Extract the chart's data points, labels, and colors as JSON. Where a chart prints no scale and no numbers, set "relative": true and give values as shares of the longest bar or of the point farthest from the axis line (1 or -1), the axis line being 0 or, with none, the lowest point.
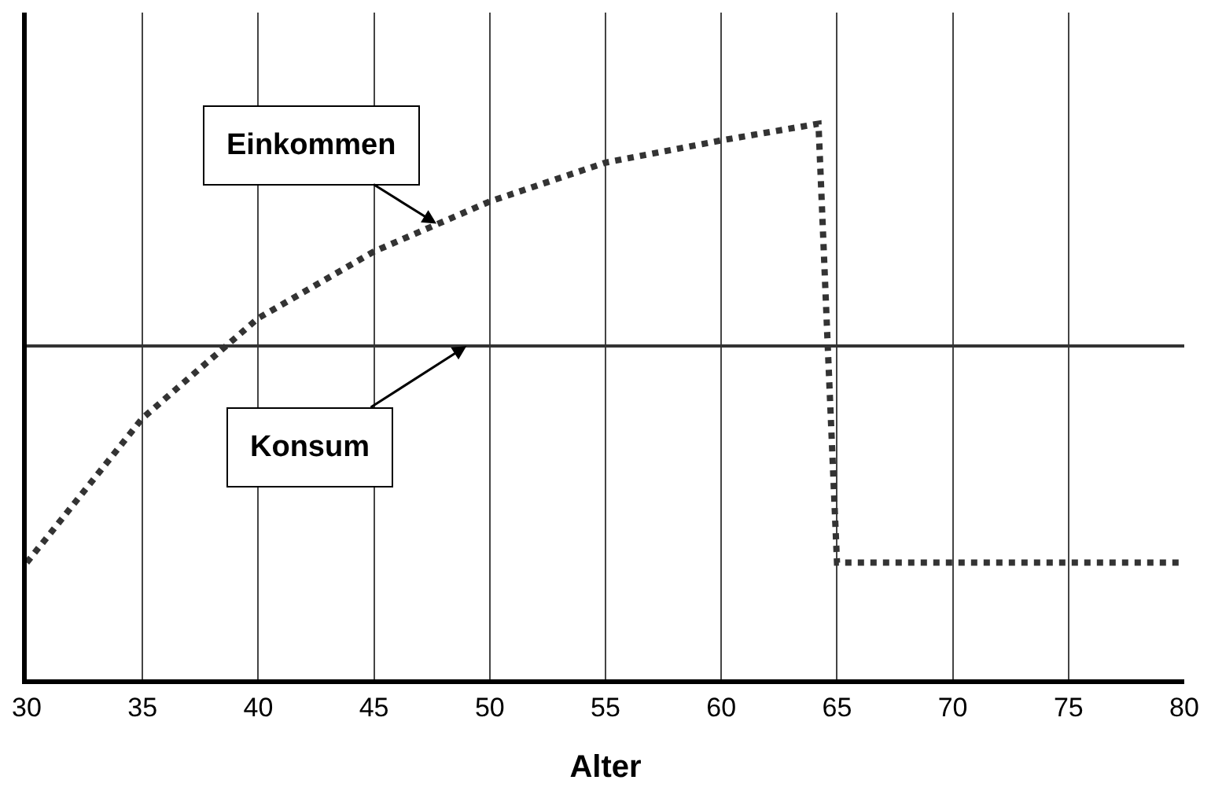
{
  "chart_data": {
    "type": "line",
    "relative": true,
    "xlabel": "Alter",
    "x": [
      30,
      35,
      40,
      45,
      50,
      55,
      60,
      64.2,
      64.6,
      65,
      70,
      75,
      80
    ],
    "xlim": [
      30,
      80
    ],
    "xticks": [
      30,
      35,
      40,
      45,
      50,
      55,
      60,
      65,
      70,
      75,
      80
    ],
    "grid": "x",
    "series": [
      {
        "color": "#333333",
        "line_style": "dotted",
        "values": [
          0.21,
          0.47,
          0.65,
          0.77,
          0.86,
          0.93,
          0.97,
          1.0,
          0.6,
          0.21,
          0.21,
          0.21,
          0.21
        ]
      },
      {
        "color": "#333333",
        "line_style": "solid",
        "x": [
          30,
          80
        ],
        "values": [
          0.6,
          0.6
        ]
      }
    ],
    "annotations": [
      {
        "text": "Einkommen",
        "x": 47.7,
        "y": 0.82
      },
      {
        "text": "Konsum",
        "x": 49,
        "y": 0.6
      }
    ]
  }
}
